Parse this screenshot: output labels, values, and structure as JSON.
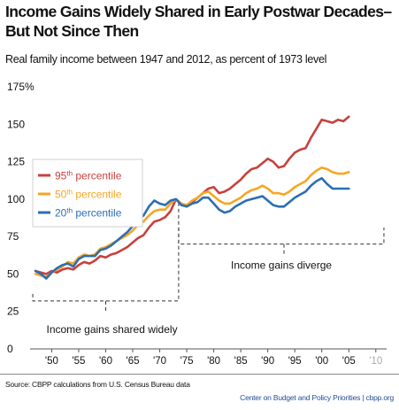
{
  "header": {
    "title_line1": "Income Gains Widely Shared in Early Postwar Decades–",
    "title_line2": "But Not Since Then",
    "subtitle": "Real family income between 1947 and 2012, as percent of 1973 level"
  },
  "footer": {
    "source": "Source: CBPP calculations from U.S. Census Bureau data",
    "credit": "Center on Budget and Policy Priorities | cbpp.org"
  },
  "chart_data": {
    "type": "line",
    "title": "Income Gains Widely Shared in Early Postwar Decades– But Not Since Then",
    "subtitle": "Real family income between 1947 and 2012, as percent of 1973 level",
    "xlim": [
      1946,
      2012
    ],
    "ylim": [
      0,
      175
    ],
    "y_ticks": [
      {
        "value": 0,
        "label": "0"
      },
      {
        "value": 25,
        "label": "25"
      },
      {
        "value": 50,
        "label": "50"
      },
      {
        "value": 75,
        "label": "75"
      },
      {
        "value": 100,
        "label": "100"
      },
      {
        "value": 125,
        "label": "125"
      },
      {
        "value": 150,
        "label": "150"
      },
      {
        "value": 175,
        "label": "175%"
      }
    ],
    "x_ticks": [
      {
        "value": 1950,
        "label": "'50",
        "color": "#111111"
      },
      {
        "value": 1955,
        "label": "'55",
        "color": "#111111"
      },
      {
        "value": 1960,
        "label": "'60",
        "color": "#111111"
      },
      {
        "value": 1965,
        "label": "'65",
        "color": "#111111"
      },
      {
        "value": 1970,
        "label": "'70",
        "color": "#111111"
      },
      {
        "value": 1975,
        "label": "'75",
        "color": "#111111"
      },
      {
        "value": 1980,
        "label": "'80",
        "color": "#111111"
      },
      {
        "value": 1985,
        "label": "'85",
        "color": "#111111"
      },
      {
        "value": 1990,
        "label": "'90",
        "color": "#111111"
      },
      {
        "value": 1995,
        "label": "'95",
        "color": "#111111"
      },
      {
        "value": 2000,
        "label": "'00",
        "color": "#111111"
      },
      {
        "value": 2005,
        "label": "'05",
        "color": "#111111"
      },
      {
        "value": 2010,
        "label": "'10",
        "color": "#aaaaaa"
      }
    ],
    "grid": false,
    "legend_placement": "left-middle",
    "series": [
      {
        "name_base": "95",
        "name_sup": "th",
        "name_suffix": " percentile",
        "color": "#c8403d",
        "x": [
          1947,
          1948,
          1949,
          1950,
          1951,
          1952,
          1953,
          1954,
          1955,
          1956,
          1957,
          1958,
          1959,
          1960,
          1961,
          1962,
          1963,
          1964,
          1965,
          1966,
          1967,
          1968,
          1969,
          1970,
          1971,
          1972,
          1973,
          1974,
          1975,
          1976,
          1977,
          1978,
          1979,
          1980,
          1981,
          1982,
          1983,
          1984,
          1985,
          1986,
          1987,
          1988,
          1989,
          1990,
          1991,
          1992,
          1993,
          1994,
          1995,
          1996,
          1997,
          1998,
          1999,
          2000,
          2001,
          2002,
          2003,
          2004,
          2005
        ],
        "y": [
          52,
          51,
          50,
          52,
          51,
          53,
          54,
          53,
          56,
          58,
          57,
          59,
          62,
          61,
          63,
          64,
          66,
          68,
          71,
          74,
          76,
          81,
          85,
          86,
          88,
          92,
          100,
          97,
          95,
          98,
          101,
          104,
          107,
          108,
          104,
          105,
          107,
          110,
          113,
          117,
          120,
          121,
          124,
          127,
          125,
          121,
          122,
          127,
          131,
          133,
          134,
          141,
          147,
          153,
          152,
          151,
          153,
          152,
          155
        ]
      },
      {
        "name_base": "50",
        "name_sup": "th",
        "name_suffix": " percentile",
        "color": "#f5a623",
        "x": [
          1947,
          1948,
          1949,
          1950,
          1951,
          1952,
          1953,
          1954,
          1955,
          1956,
          1957,
          1958,
          1959,
          1960,
          1961,
          1962,
          1963,
          1964,
          1965,
          1966,
          1967,
          1968,
          1969,
          1970,
          1971,
          1972,
          1973,
          1974,
          1975,
          1976,
          1977,
          1978,
          1979,
          1980,
          1981,
          1982,
          1983,
          1984,
          1985,
          1986,
          1987,
          1988,
          1989,
          1990,
          1991,
          1992,
          1993,
          1994,
          1995,
          1996,
          1997,
          1998,
          1999,
          2000,
          2001,
          2002,
          2003,
          2004,
          2005
        ],
        "y": [
          50,
          49,
          48,
          51,
          53,
          55,
          58,
          57,
          61,
          63,
          62,
          63,
          67,
          68,
          70,
          72,
          74,
          76,
          79,
          83,
          85,
          89,
          92,
          93,
          93,
          97,
          100,
          97,
          96,
          99,
          101,
          104,
          105,
          102,
          99,
          97,
          97,
          99,
          101,
          104,
          106,
          107,
          109,
          107,
          104,
          104,
          103,
          105,
          108,
          110,
          112,
          116,
          119,
          121,
          120,
          118,
          117,
          117,
          118
        ]
      },
      {
        "name_base": "20",
        "name_sup": "th",
        "name_suffix": " percentile",
        "color": "#2b6eb5",
        "x": [
          1947,
          1948,
          1949,
          1950,
          1951,
          1952,
          1953,
          1954,
          1955,
          1956,
          1957,
          1958,
          1959,
          1960,
          1961,
          1962,
          1963,
          1964,
          1965,
          1966,
          1967,
          1968,
          1969,
          1970,
          1971,
          1972,
          1973,
          1974,
          1975,
          1976,
          1977,
          1978,
          1979,
          1980,
          1981,
          1982,
          1983,
          1984,
          1985,
          1986,
          1987,
          1988,
          1989,
          1990,
          1991,
          1992,
          1993,
          1994,
          1995,
          1996,
          1997,
          1998,
          1999,
          2000,
          2001,
          2002,
          2003,
          2004,
          2005
        ],
        "y": [
          52,
          50,
          47,
          51,
          54,
          56,
          57,
          55,
          60,
          62,
          62,
          62,
          66,
          67,
          69,
          72,
          75,
          78,
          82,
          87,
          89,
          95,
          99,
          97,
          96,
          99,
          100,
          96,
          95,
          97,
          98,
          101,
          101,
          97,
          93,
          91,
          92,
          95,
          97,
          99,
          100,
          101,
          102,
          99,
          96,
          95,
          95,
          98,
          101,
          103,
          105,
          109,
          112,
          114,
          110,
          107,
          107,
          107,
          107
        ]
      }
    ],
    "annotations": {
      "shared": {
        "label": "Income gains shared widely",
        "x0": 1946.5,
        "x1": 1973.5,
        "y": 32
      },
      "diverge": {
        "label": "Income gains diverge",
        "x0": 1973.5,
        "x1": 2011.5,
        "y": 70
      }
    }
  }
}
